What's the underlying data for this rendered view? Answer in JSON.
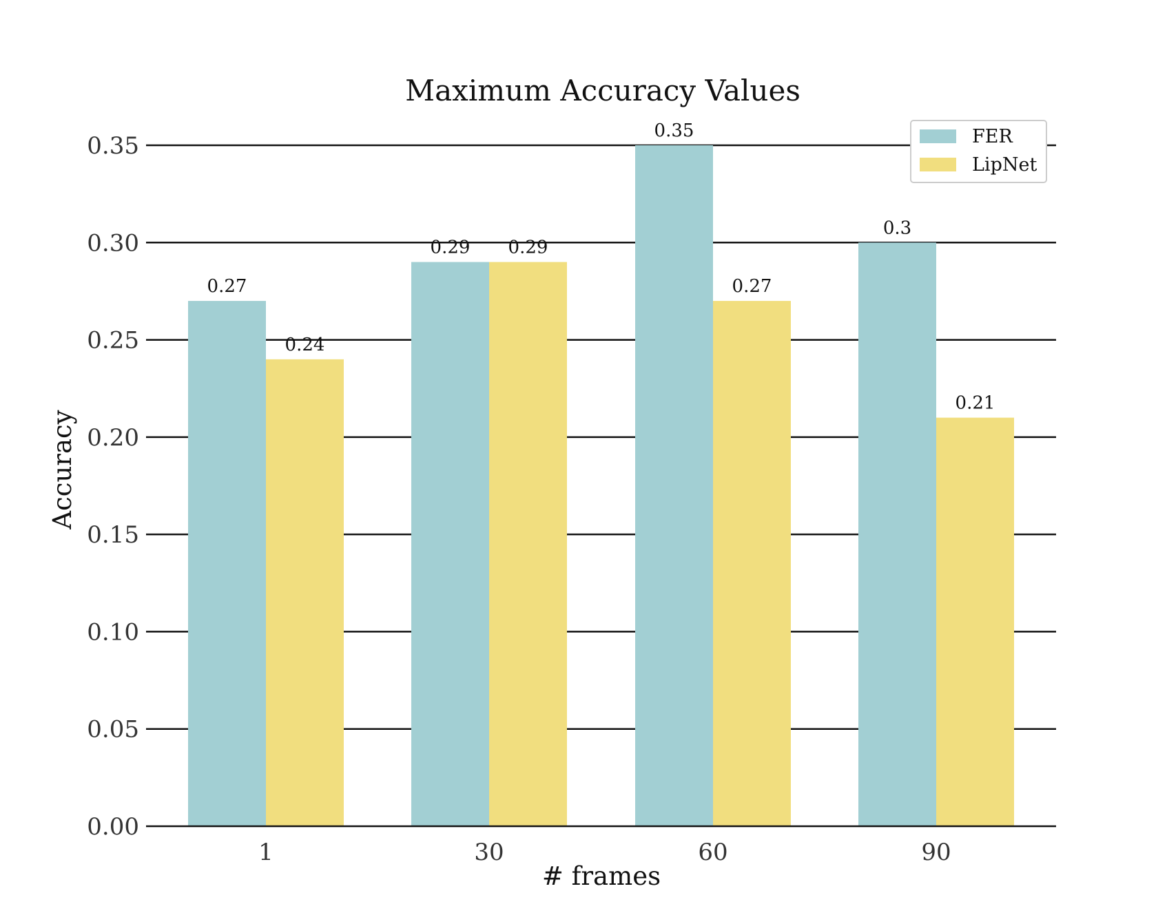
{
  "chart_data": {
    "type": "bar",
    "title": "Maximum Accuracy Values",
    "xlabel": "# frames",
    "ylabel": "Accuracy",
    "categories": [
      "1",
      "30",
      "60",
      "90"
    ],
    "series": [
      {
        "name": "FER",
        "values": [
          0.27,
          0.29,
          0.35,
          0.3
        ],
        "labels": [
          "0.27",
          "0.29",
          "0.35",
          "0.3"
        ],
        "color": "#a2cfd3"
      },
      {
        "name": "LipNet",
        "values": [
          0.24,
          0.29,
          0.27,
          0.21
        ],
        "labels": [
          "0.24",
          "0.29",
          "0.27",
          "0.21"
        ],
        "color": "#f1de7f"
      }
    ],
    "ylim": [
      0,
      0.35
    ],
    "yticks": [
      "0.00",
      "0.05",
      "0.10",
      "0.15",
      "0.20",
      "0.25",
      "0.30",
      "0.35"
    ],
    "grid": true,
    "legend": "top-right"
  }
}
